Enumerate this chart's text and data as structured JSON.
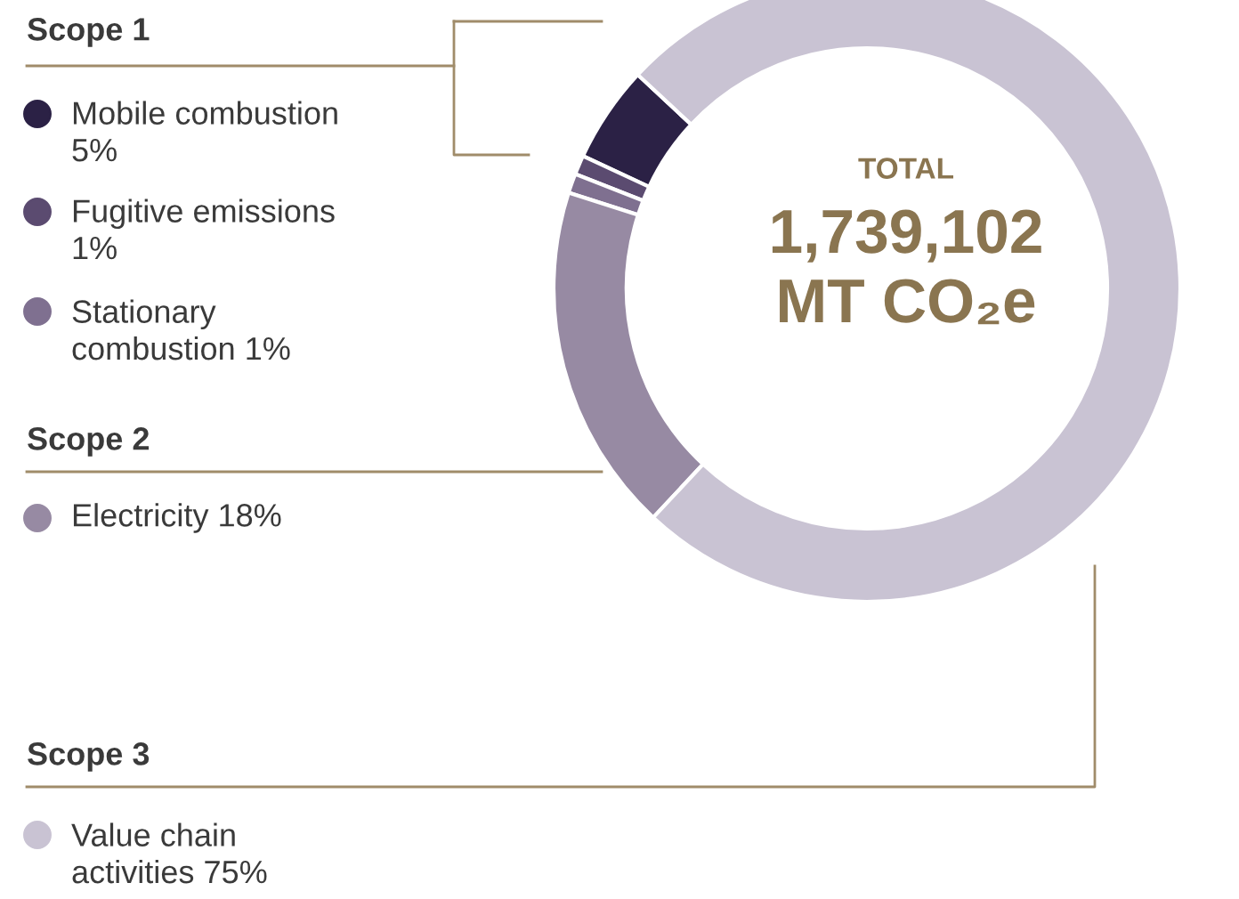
{
  "chart_data": {
    "type": "donut",
    "categories": [
      "Mobile combustion",
      "Fugitive emissions",
      "Stationary\ncombustion",
      "Electricity",
      "Value chain\nactivities"
    ],
    "values": [
      5,
      1,
      1,
      18,
      75
    ],
    "value_labels": [
      "5%",
      "1%",
      "1%",
      "18%",
      "75%"
    ],
    "colors": [
      "#2b2145",
      "#5b4b70",
      "#7f7090",
      "#978aa3",
      "#c9c3d3"
    ],
    "annotations": [
      "Scope 1",
      "Scope 2",
      "Scope 3",
      "TOTAL",
      "1,739,102",
      "MT CO₂e"
    ],
    "legend": "left"
  }
}
